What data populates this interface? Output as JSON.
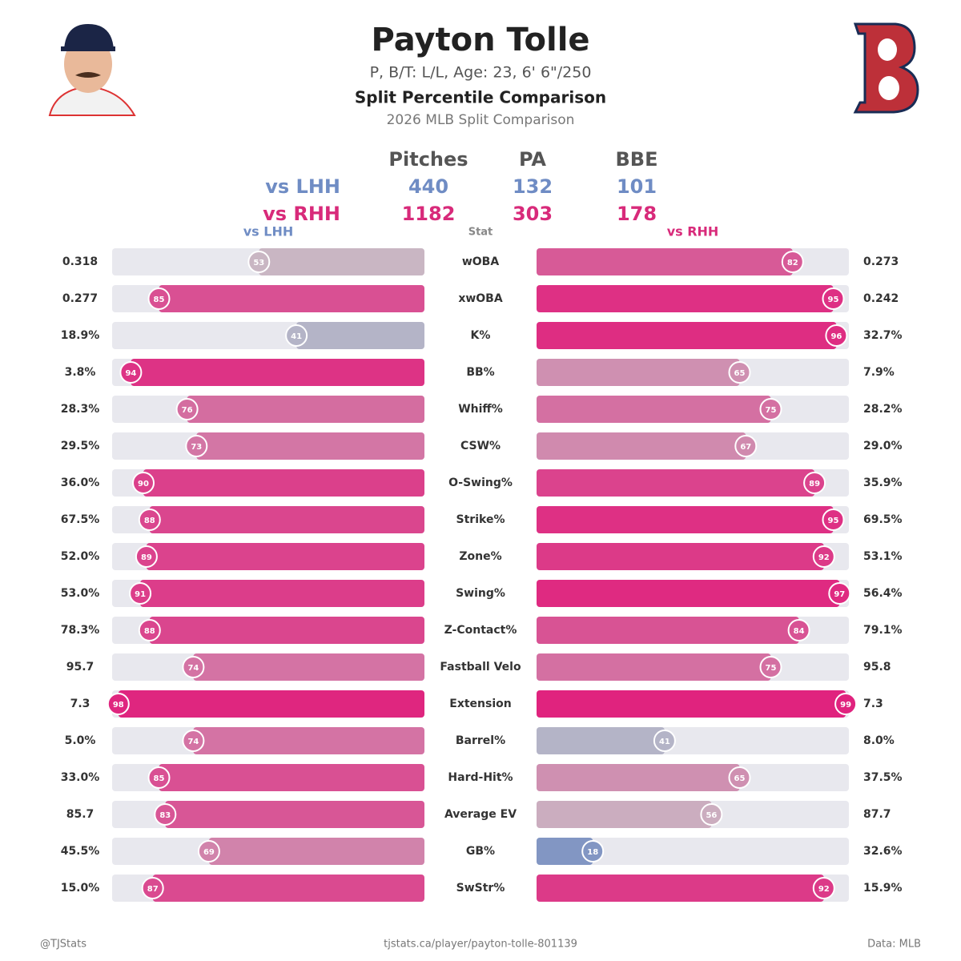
{
  "header": {
    "name": "Payton Tolle",
    "bio": "P, B/T: L/L, Age: 23, 6' 6\"/250",
    "title": "Split Percentile Comparison",
    "subtitle": "2026 MLB Split Comparison"
  },
  "sample": {
    "columns": [
      "Pitches",
      "PA",
      "BBE"
    ],
    "rows": [
      {
        "label": "vs LHH",
        "values": [
          440,
          132,
          101
        ]
      },
      {
        "label": "vs RHH",
        "values": [
          1182,
          303,
          178
        ]
      }
    ]
  },
  "chart_data": {
    "type": "split_percentile",
    "left_label": "vs LHH",
    "center_label": "Stat",
    "right_label": "vs RHH",
    "xlim": [
      0,
      100
    ],
    "stats": [
      "wOBA",
      "xwOBA",
      "K%",
      "BB%",
      "Whiff%",
      "CSW%",
      "O-Swing%",
      "Strike%",
      "Zone%",
      "Swing%",
      "Z-Contact%",
      "Fastball Velo",
      "Extension",
      "Barrel%",
      "Hard-Hit%",
      "Average EV",
      "GB%",
      "SwStr%"
    ],
    "left": {
      "stat_values": [
        "0.318",
        "0.277",
        "18.9%",
        "3.8%",
        "28.3%",
        "29.5%",
        "36.0%",
        "67.5%",
        "52.0%",
        "53.0%",
        "78.3%",
        "95.7",
        "7.3",
        "5.0%",
        "33.0%",
        "85.7",
        "45.5%",
        "15.0%"
      ],
      "percentiles": [
        53,
        85,
        41,
        94,
        76,
        73,
        90,
        88,
        89,
        91,
        88,
        74,
        98,
        74,
        85,
        83,
        69,
        87
      ]
    },
    "right": {
      "stat_values": [
        "0.273",
        "0.242",
        "32.7%",
        "7.9%",
        "28.2%",
        "29.0%",
        "35.9%",
        "69.5%",
        "53.1%",
        "56.4%",
        "79.1%",
        "95.8",
        "7.3",
        "8.0%",
        "37.5%",
        "87.7",
        "32.6%",
        "15.9%"
      ],
      "percentiles": [
        82,
        95,
        96,
        65,
        75,
        67,
        89,
        95,
        92,
        97,
        84,
        75,
        99,
        41,
        65,
        56,
        18,
        92
      ]
    },
    "color_scale": [
      "#5b7fc0",
      "#c8c0c8",
      "#e0207c"
    ]
  },
  "footer": {
    "left": "@TJStats",
    "center": "tjstats.ca/player/payton-tolle-801139",
    "right": "Data: MLB"
  }
}
